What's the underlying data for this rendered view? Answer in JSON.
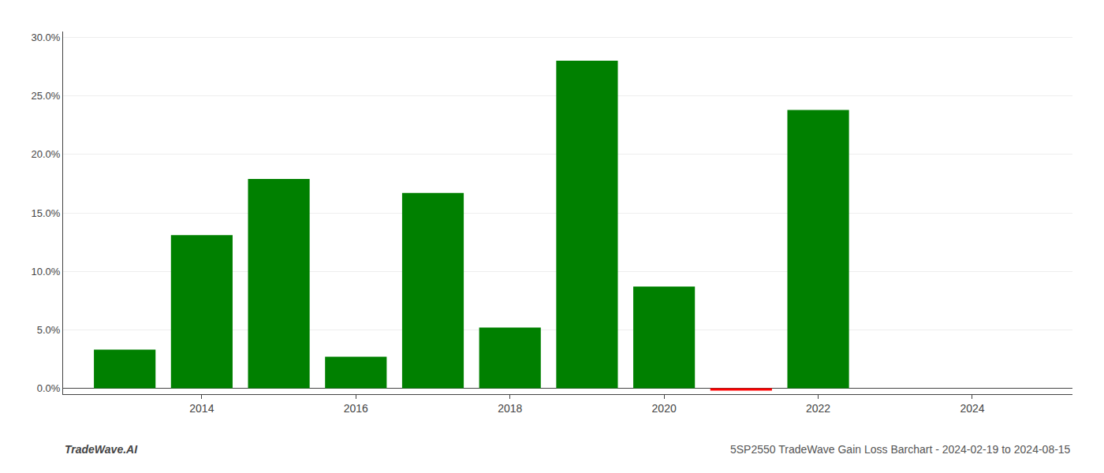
{
  "chart_data": {
    "type": "bar",
    "x": [
      2013,
      2014,
      2015,
      2016,
      2017,
      2018,
      2019,
      2020,
      2021,
      2022,
      2024
    ],
    "values": [
      0.033,
      0.131,
      0.179,
      0.027,
      0.167,
      0.052,
      0.28,
      0.087,
      -0.002,
      0.238,
      0.0
    ],
    "colors": [
      "#008000",
      "#008000",
      "#008000",
      "#008000",
      "#008000",
      "#008000",
      "#008000",
      "#008000",
      "#ff0000",
      "#008000",
      "#008000"
    ],
    "xlim": [
      2012.2,
      2025.3
    ],
    "xticks": [
      2014,
      2016,
      2018,
      2020,
      2022,
      2024
    ],
    "ylim": [
      -0.005,
      0.305
    ],
    "yticks": [
      {
        "value": 0.0,
        "label": "0.0%"
      },
      {
        "value": 0.05,
        "label": "5.0%"
      },
      {
        "value": 0.1,
        "label": "10.0%"
      },
      {
        "value": 0.15,
        "label": "15.0%"
      },
      {
        "value": 0.2,
        "label": "20.0%"
      },
      {
        "value": 0.25,
        "label": "25.0%"
      },
      {
        "value": 0.3,
        "label": "30.0%"
      }
    ],
    "grid": true,
    "annotations": [
      "TradeWave.AI",
      "5SP2550 TradeWave Gain Loss Barchart - 2024-02-19 to 2024-08-15"
    ]
  }
}
